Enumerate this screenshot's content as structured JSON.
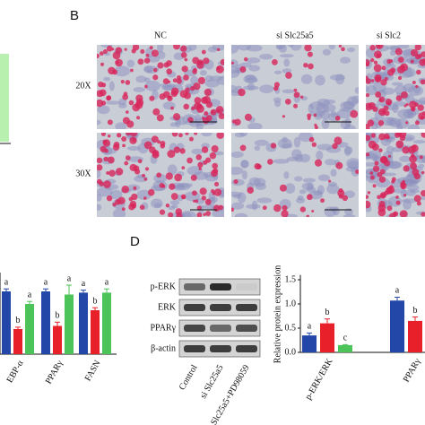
{
  "panel_labels": [
    "B",
    "D"
  ],
  "micrographs": {
    "columns": [
      "NC",
      "si Slc25a5",
      "si Slc2"
    ],
    "rows": [
      "20X",
      "30X"
    ]
  },
  "blot": {
    "proteins": [
      "p-ERK",
      "ERK",
      "PPARγ",
      "β-actin"
    ],
    "lanes": [
      "Control",
      "si Slc25a5",
      "si Slc25a5+PD98059"
    ]
  },
  "chart_data": [
    {
      "type": "bar",
      "categories": [
        "EBP-α",
        "PPARγ",
        "FASN"
      ],
      "ylim": [
        0,
        1.3
      ],
      "series": [
        {
          "color": "#2347a8",
          "values": [
            1.0,
            1.0,
            0.98
          ],
          "errors": [
            0.04,
            0.04,
            0.04
          ],
          "labels": [
            "a",
            "a",
            "a"
          ]
        },
        {
          "color": "#e8202a",
          "values": [
            0.4,
            0.45,
            0.7
          ],
          "errors": [
            0.03,
            0.06,
            0.04
          ],
          "labels": [
            "b",
            "b",
            "b"
          ]
        },
        {
          "color": "#4cc45a",
          "values": [
            0.8,
            0.95,
            0.98
          ],
          "errors": [
            0.04,
            0.15,
            0.06
          ],
          "labels": [
            "a",
            "a",
            "a"
          ]
        }
      ]
    },
    {
      "type": "bar",
      "ylabel": "Relative protein expression",
      "categories": [
        "p-ERK/ERK",
        "PPARγ"
      ],
      "ylim": [
        0,
        1.6
      ],
      "yticks": [
        {
          "value": 0,
          "label": "0.0"
        },
        {
          "value": 0.5,
          "label": "0.5"
        },
        {
          "value": 1,
          "label": "1.0"
        },
        {
          "value": 1.5,
          "label": "1.5"
        }
      ],
      "series": [
        {
          "color": "#2347a8",
          "values": [
            0.35,
            1.07
          ],
          "errors": [
            0.05,
            0.07
          ],
          "labels": [
            "a",
            "a"
          ]
        },
        {
          "color": "#e8202a",
          "values": [
            0.6,
            0.65
          ],
          "errors": [
            0.09,
            0.08
          ],
          "labels": [
            "b",
            "b"
          ]
        },
        {
          "color": "#4cc45a",
          "values": [
            0.15,
            null
          ],
          "errors": [
            0.01,
            null
          ],
          "labels": [
            "c",
            null
          ]
        }
      ]
    }
  ]
}
